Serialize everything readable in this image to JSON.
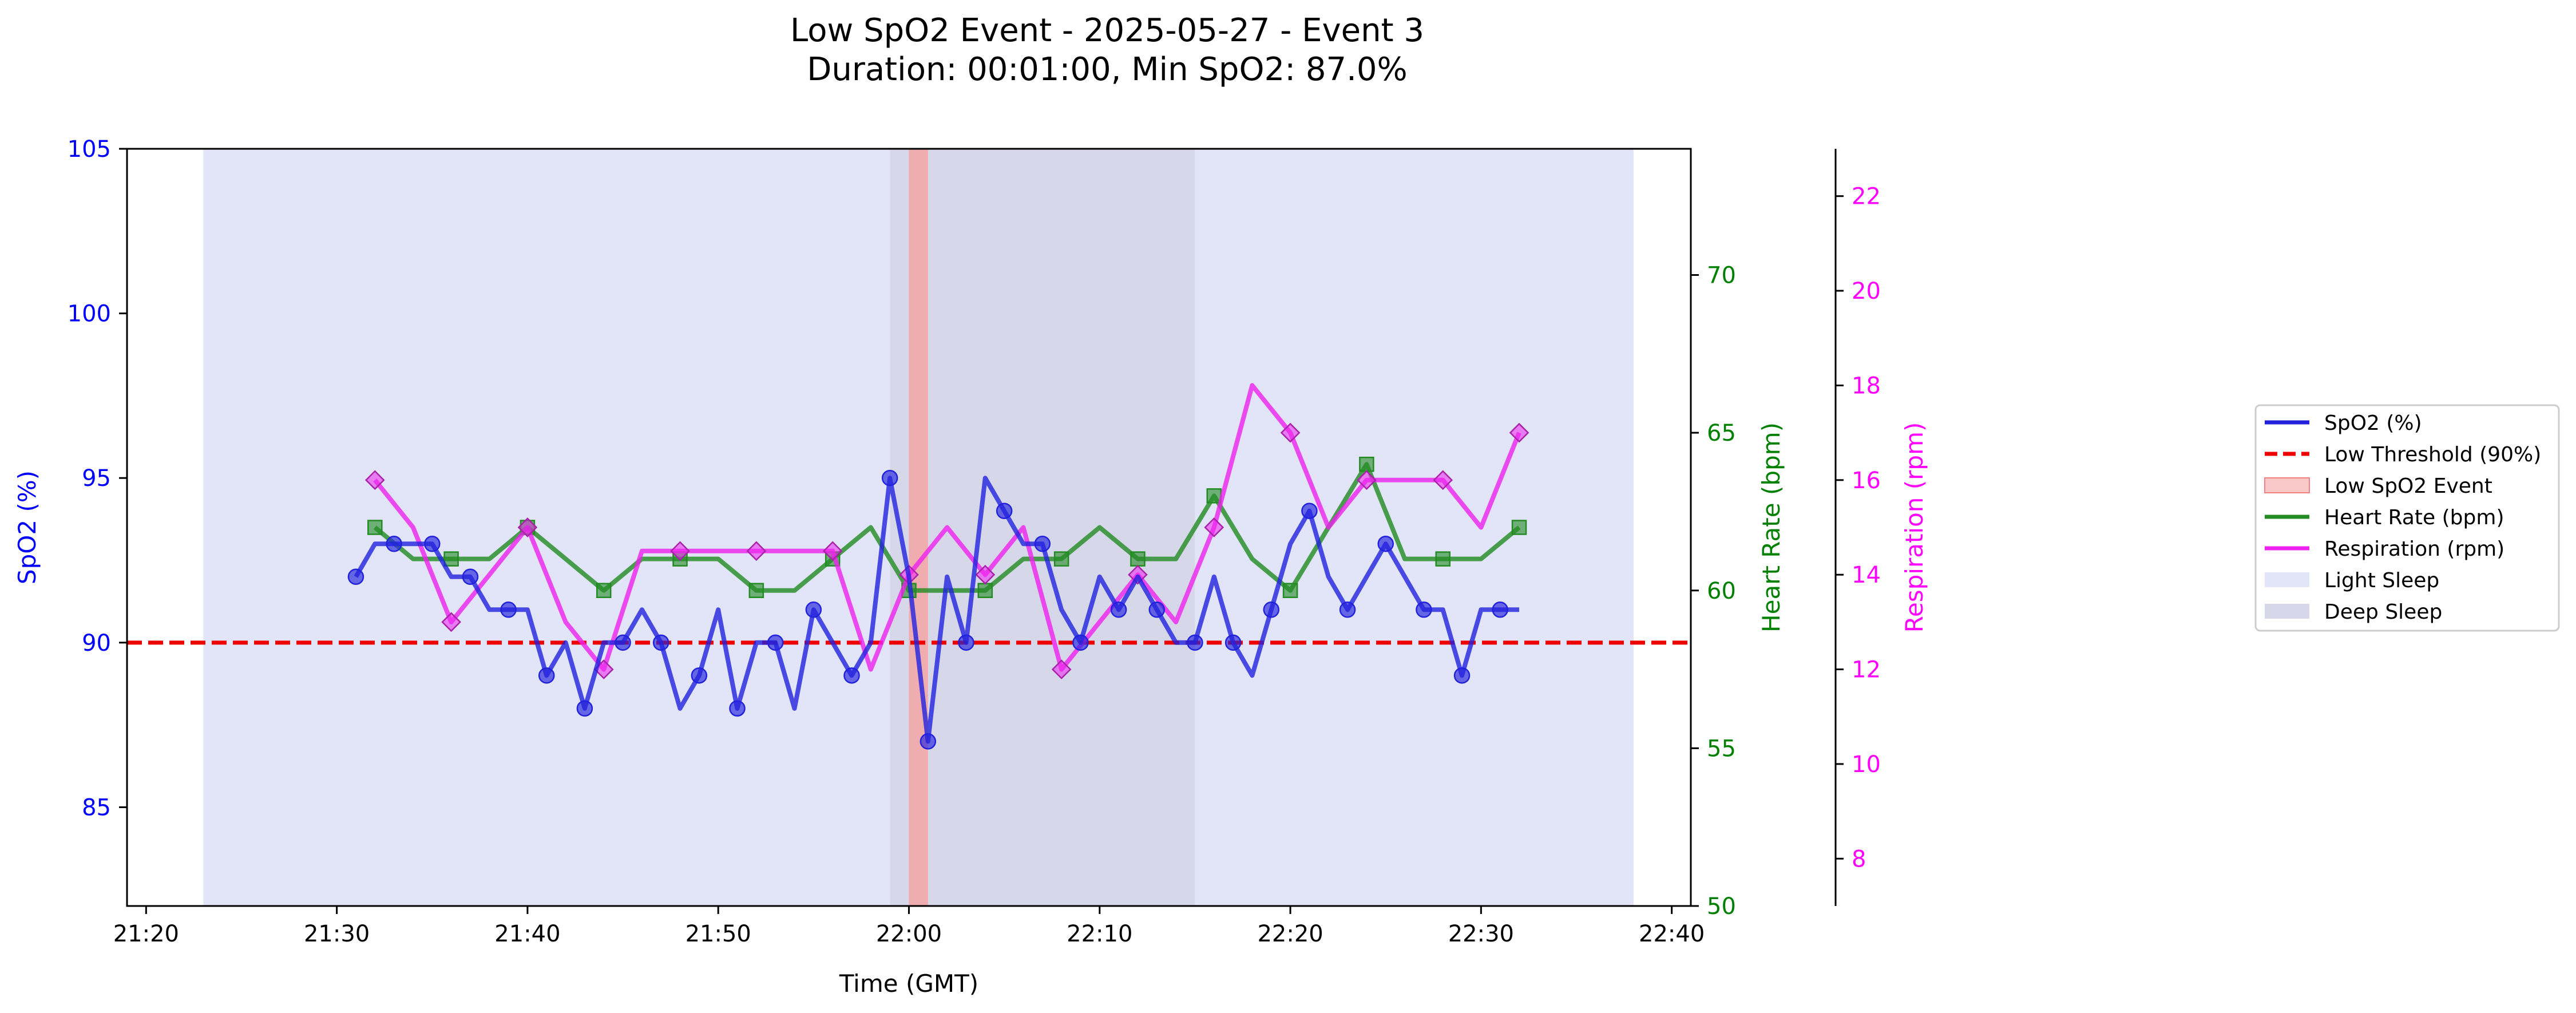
{
  "chart_data": {
    "type": "line",
    "title": "Low SpO2 Event - 2025-05-27 - Event 3",
    "subtitle": "Duration: 00:01:00, Min SpO2: 87.0%",
    "xlabel": "Time (GMT)",
    "ylabel": "SpO2 (%)",
    "y2label": "Heart Rate (bpm)",
    "y3label": "Respiration (rpm)",
    "xlim": [
      "21:19",
      "22:41"
    ],
    "ylim": [
      82,
      105
    ],
    "y2lim": [
      50,
      74
    ],
    "y3lim": [
      7,
      23
    ],
    "xticks": [
      "21:20",
      "21:30",
      "21:40",
      "21:50",
      "22:00",
      "22:10",
      "22:20",
      "22:30",
      "22:40"
    ],
    "yticks": [
      85,
      90,
      95,
      100,
      105
    ],
    "y2ticks": [
      50,
      55,
      60,
      65,
      70
    ],
    "y3ticks": [
      8,
      10,
      12,
      14,
      16,
      18,
      20,
      22
    ],
    "grid": false,
    "legend_position": "right, outside plot",
    "colors": {
      "spo2": "#2222dd",
      "threshold": "#ee0000",
      "event": "#f4a6a6",
      "heart_rate": "#228b22",
      "respiration": "#ee22ee",
      "light_sleep": "#e1e5f7",
      "deep_sleep": "#d6d8ea",
      "axis_spo2_text": "#0000ff",
      "axis_hr_text": "#008000",
      "axis_resp_text": "#ff00ff"
    },
    "sleep_stages": [
      {
        "stage": "Light Sleep",
        "start": "21:23",
        "end": "21:59"
      },
      {
        "stage": "Deep Sleep",
        "start": "21:59",
        "end": "22:15"
      },
      {
        "stage": "Light Sleep",
        "start": "22:15",
        "end": "22:38"
      }
    ],
    "event_window": {
      "start": "22:00",
      "end": "22:01"
    },
    "threshold": 90,
    "series": [
      {
        "name": "SpO2 (%)",
        "axis": "spo2",
        "x": [
          "21:31",
          "21:32",
          "21:33",
          "21:34",
          "21:35",
          "21:36",
          "21:37",
          "21:38",
          "21:39",
          "21:40",
          "21:41",
          "21:42",
          "21:43",
          "21:44",
          "21:45",
          "21:46",
          "21:47",
          "21:48",
          "21:49",
          "21:50",
          "21:51",
          "21:52",
          "21:53",
          "21:54",
          "21:55",
          "21:56",
          "21:57",
          "21:58",
          "21:59",
          "22:00",
          "22:01",
          "22:02",
          "22:03",
          "22:04",
          "22:05",
          "22:06",
          "22:07",
          "22:08",
          "22:09",
          "22:10",
          "22:11",
          "22:12",
          "22:13",
          "22:14",
          "22:15",
          "22:16",
          "22:17",
          "22:18",
          "22:19",
          "22:20",
          "22:21",
          "22:22",
          "22:23",
          "22:24",
          "22:25",
          "22:26",
          "22:27",
          "22:28",
          "22:29",
          "22:30",
          "22:31",
          "22:32"
        ],
        "values": [
          92,
          93,
          93,
          93,
          93,
          92,
          92,
          91,
          91,
          91,
          89,
          90,
          88,
          90,
          90,
          91,
          90,
          88,
          89,
          91,
          88,
          90,
          90,
          88,
          91,
          90,
          89,
          90,
          95,
          92,
          87,
          92,
          90,
          95,
          94,
          93,
          93,
          91,
          90,
          92,
          91,
          92,
          91,
          90,
          90,
          92,
          90,
          89,
          91,
          93,
          94,
          92,
          91,
          92,
          93,
          92,
          91,
          91,
          89,
          91,
          91,
          91
        ],
        "markers_at": [
          "21:31",
          "21:33",
          "21:35",
          "21:37",
          "21:39",
          "21:41",
          "21:43",
          "21:45",
          "21:47",
          "21:49",
          "21:51",
          "21:53",
          "21:55",
          "21:57",
          "21:59",
          "22:01",
          "22:03",
          "22:05",
          "22:07",
          "22:09",
          "22:11",
          "22:13",
          "22:15",
          "22:17",
          "22:19",
          "22:21",
          "22:23",
          "22:25",
          "22:27",
          "22:29",
          "22:31"
        ]
      },
      {
        "name": "Heart Rate (bpm)",
        "axis": "hr",
        "x": [
          "21:32",
          "21:34",
          "21:36",
          "21:38",
          "21:40",
          "21:42",
          "21:44",
          "21:46",
          "21:48",
          "21:50",
          "21:52",
          "21:54",
          "21:56",
          "21:58",
          "22:00",
          "22:02",
          "22:04",
          "22:06",
          "22:08",
          "22:10",
          "22:12",
          "22:14",
          "22:16",
          "22:18",
          "22:20",
          "22:22",
          "22:24",
          "22:26",
          "22:28",
          "22:30",
          "22:32"
        ],
        "values": [
          62,
          61,
          61,
          61,
          62,
          61,
          60,
          61,
          61,
          61,
          60,
          60,
          61,
          62,
          60,
          60,
          60,
          61,
          61,
          62,
          61,
          61,
          63,
          61,
          60,
          62,
          64,
          61,
          61,
          61,
          62
        ],
        "markers_at": [
          "21:32",
          "21:36",
          "21:40",
          "21:44",
          "21:48",
          "21:52",
          "21:56",
          "22:00",
          "22:04",
          "22:08",
          "22:12",
          "22:16",
          "22:20",
          "22:24",
          "22:28",
          "22:32"
        ]
      },
      {
        "name": "Respiration (rpm)",
        "axis": "resp",
        "x": [
          "21:32",
          "21:34",
          "21:36",
          "21:38",
          "21:40",
          "21:42",
          "21:44",
          "21:46",
          "21:48",
          "21:50",
          "21:52",
          "21:54",
          "21:56",
          "21:58",
          "22:00",
          "22:02",
          "22:04",
          "22:06",
          "22:08",
          "22:10",
          "22:12",
          "22:14",
          "22:16",
          "22:18",
          "22:20",
          "22:22",
          "22:24",
          "22:26",
          "22:28",
          "22:30",
          "22:32"
        ],
        "values": [
          16,
          15,
          13,
          14,
          15,
          13,
          12,
          14.5,
          14.5,
          14.5,
          14.5,
          14.5,
          14.5,
          12,
          14,
          15,
          14,
          15,
          12,
          13,
          14,
          13,
          15,
          18,
          17,
          15,
          16,
          16,
          16,
          15,
          17
        ],
        "markers_at": [
          "21:32",
          "21:36",
          "21:40",
          "21:44",
          "21:48",
          "21:52",
          "21:56",
          "22:00",
          "22:04",
          "22:08",
          "22:12",
          "22:16",
          "22:20",
          "22:24",
          "22:28",
          "22:32"
        ]
      }
    ],
    "legend": [
      {
        "label": "SpO2 (%)",
        "kind": "line",
        "color": "#2222dd"
      },
      {
        "label": "Low Threshold (90%)",
        "kind": "dashed",
        "color": "#ee0000"
      },
      {
        "label": "Low SpO2 Event",
        "kind": "patch",
        "color": "#f9c9c9"
      },
      {
        "label": "Heart Rate (bpm)",
        "kind": "line",
        "color": "#228b22"
      },
      {
        "label": "Respiration (rpm)",
        "kind": "line",
        "color": "#ee22ee"
      },
      {
        "label": "Light Sleep",
        "kind": "patch",
        "color": "#e1e5f7"
      },
      {
        "label": "Deep Sleep",
        "kind": "patch",
        "color": "#d6d8ea"
      }
    ]
  }
}
